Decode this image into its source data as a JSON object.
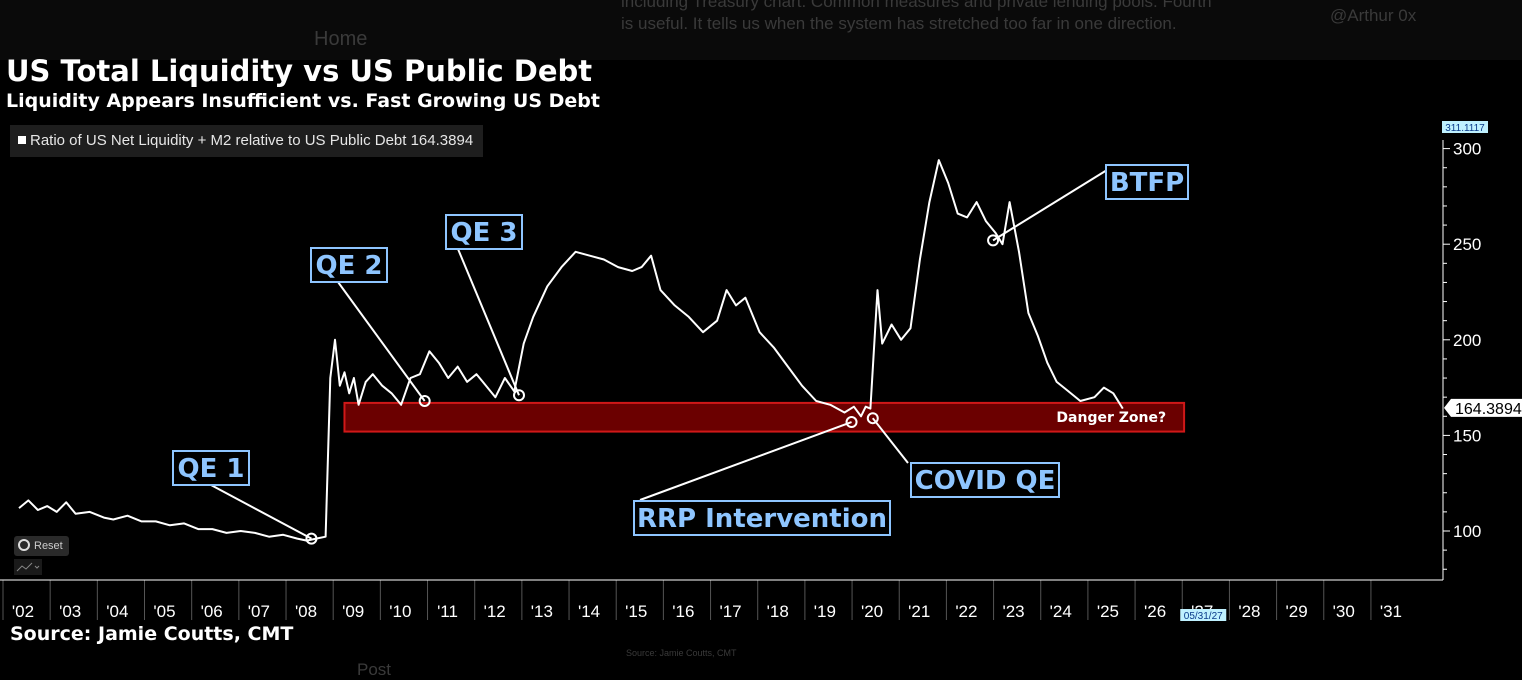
{
  "background": {
    "home_label": "Home",
    "post_label": "Post",
    "tweet_text_line1": "including Treasury chart. Common measures and private lending pools. Fourth",
    "tweet_text_line2": "is useful. It tells us when the system has stretched too far in one direction.",
    "handle": "@Arthur 0x",
    "source_faint": "Source: Jamie Coutts, CMT"
  },
  "chart_data": {
    "type": "line",
    "title": "US Total Liquidity vs US Public Debt",
    "subtitle": "Liquidity Appears Insufficient vs. Fast Growing US Debt",
    "source": "Source: Jamie Coutts, CMT",
    "series": [
      {
        "name": "Ratio of US Net Liquidity + M2 relative to US Public Debt",
        "last_value": "164.3894",
        "color": "#ffffff",
        "x": [
          2002.0,
          2002.2,
          2002.4,
          2002.6,
          2002.8,
          2003.0,
          2003.2,
          2003.5,
          2003.8,
          2004.0,
          2004.3,
          2004.6,
          2004.9,
          2005.2,
          2005.5,
          2005.8,
          2006.1,
          2006.4,
          2006.7,
          2007.0,
          2007.3,
          2007.6,
          2007.9,
          2008.1,
          2008.3,
          2008.5,
          2008.6,
          2008.7,
          2008.8,
          2008.9,
          2009.0,
          2009.1,
          2009.2,
          2009.35,
          2009.5,
          2009.7,
          2009.9,
          2010.1,
          2010.3,
          2010.5,
          2010.7,
          2010.9,
          2011.1,
          2011.3,
          2011.5,
          2011.7,
          2011.9,
          2012.1,
          2012.3,
          2012.5,
          2012.7,
          2012.9,
          2013.2,
          2013.5,
          2013.8,
          2014.1,
          2014.4,
          2014.7,
          2015.0,
          2015.2,
          2015.4,
          2015.6,
          2015.9,
          2016.2,
          2016.5,
          2016.8,
          2017.0,
          2017.2,
          2017.4,
          2017.7,
          2018.0,
          2018.3,
          2018.6,
          2018.9,
          2019.2,
          2019.5,
          2019.7,
          2019.85,
          2019.95,
          2020.05,
          2020.2,
          2020.3,
          2020.5,
          2020.7,
          2020.9,
          2021.1,
          2021.3,
          2021.5,
          2021.7,
          2021.9,
          2022.1,
          2022.3,
          2022.5,
          2022.7,
          2022.85,
          2023.0,
          2023.2,
          2023.4,
          2023.6,
          2023.8,
          2024.0,
          2024.2,
          2024.5,
          2024.8,
          2025.0,
          2025.2,
          2025.4
        ],
        "y": [
          112,
          116,
          111,
          113,
          110,
          115,
          109,
          110,
          107,
          106,
          108,
          105,
          105,
          103,
          104,
          101,
          101,
          99,
          100,
          99,
          97,
          98,
          96,
          95,
          96,
          97,
          180,
          200,
          176,
          183,
          172,
          180,
          166,
          178,
          182,
          176,
          172,
          166,
          180,
          182,
          194,
          188,
          180,
          186,
          178,
          182,
          176,
          170,
          180,
          173,
          198,
          212,
          228,
          238,
          246,
          244,
          242,
          238,
          236,
          238,
          244,
          226,
          218,
          212,
          204,
          210,
          226,
          218,
          222,
          204,
          196,
          186,
          176,
          168,
          166,
          162,
          165,
          160,
          165,
          164,
          226,
          198,
          208,
          200,
          206,
          242,
          272,
          294,
          282,
          266,
          264,
          272,
          262,
          256,
          250,
          272,
          246,
          214,
          202,
          188,
          178,
          174,
          168,
          170,
          175,
          172,
          164
        ]
      }
    ],
    "x_ticks": [
      "'02",
      "'03",
      "'04",
      "'05",
      "'06",
      "'07",
      "'08",
      "'09",
      "'10",
      "'11",
      "'12",
      "'13",
      "'14",
      "'15",
      "'16",
      "'17",
      "'18",
      "'19",
      "'20",
      "'21",
      "'22",
      "'23",
      "'24",
      "'25",
      "'26",
      "'27",
      "'28",
      "'29",
      "'30",
      "'31"
    ],
    "y_ticks": [
      100,
      150,
      200,
      250,
      300
    ],
    "ylim": [
      76,
      311.1117
    ],
    "y_axis_max_label": "311.1117",
    "date_flag": "05/31/27",
    "last_value_label": "164.3894",
    "danger_zone": {
      "label": "Danger Zone?",
      "y_from": 152,
      "y_to": 167,
      "x_from": 2008.9,
      "x_to": 2026.7,
      "color": "#6b0000",
      "border": "#d01818"
    },
    "annotations": [
      {
        "label": "QE 1",
        "x": 2008.2,
        "y": 96
      },
      {
        "label": "QE 2",
        "x": 2010.6,
        "y": 168
      },
      {
        "label": "QE 3",
        "x": 2012.6,
        "y": 171
      },
      {
        "label": "BTFP",
        "x": 2022.65,
        "y": 252
      },
      {
        "label": "RRP Intervention",
        "x": 2019.65,
        "y": 157
      },
      {
        "label": "COVID QE",
        "x": 2020.1,
        "y": 159
      }
    ],
    "annotation_color": "#8ec5ff"
  },
  "controls": {
    "reset_label": "Reset"
  }
}
